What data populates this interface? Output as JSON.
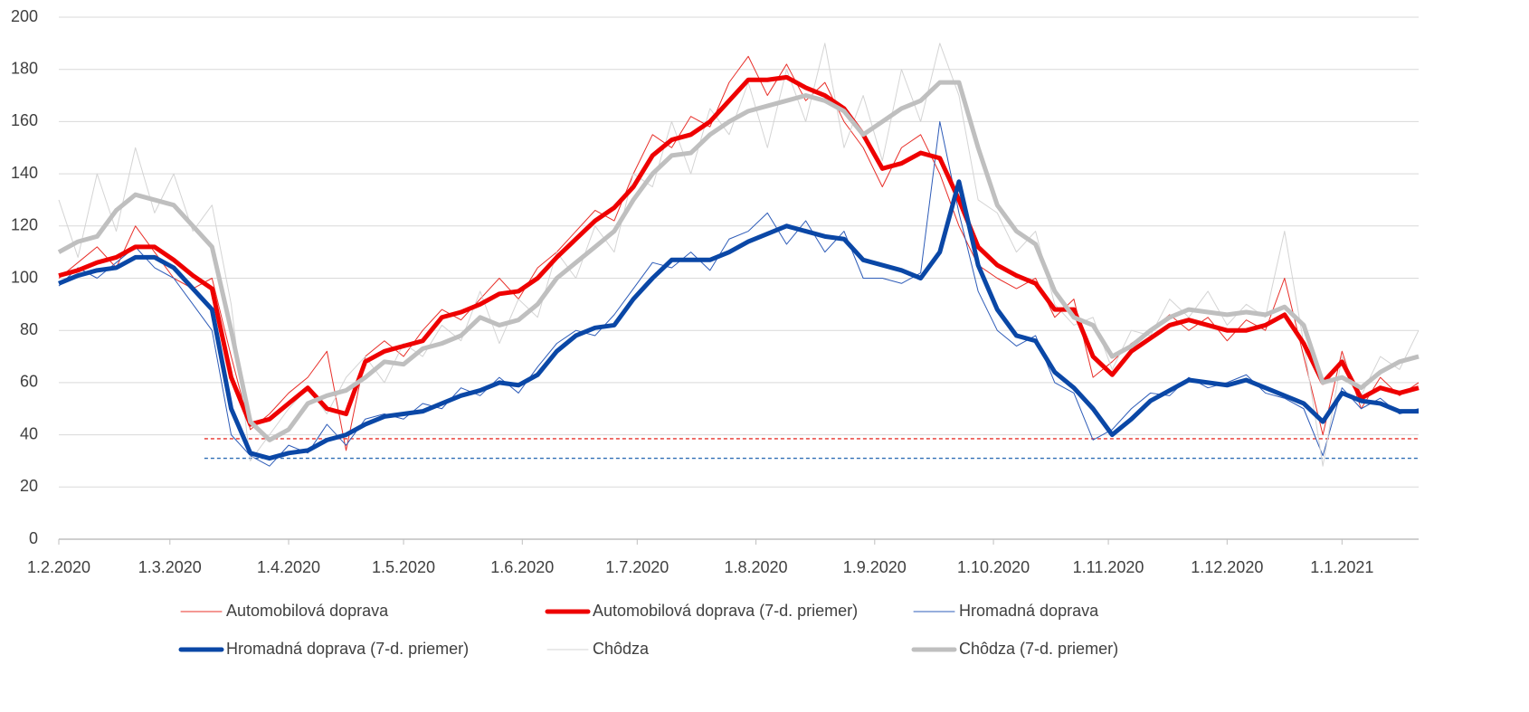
{
  "chart_data": {
    "type": "line",
    "x": [
      0,
      5,
      10,
      15,
      20,
      25,
      30,
      35,
      40,
      45,
      50,
      55,
      60,
      65,
      70,
      75,
      80,
      85,
      90,
      95,
      100,
      105,
      110,
      115,
      120,
      125,
      130,
      135,
      140,
      145,
      150,
      155,
      160,
      165,
      170,
      175,
      180,
      185,
      190,
      195,
      200,
      205,
      210,
      215,
      220,
      225,
      230,
      235,
      240,
      245,
      250,
      255,
      260,
      265,
      270,
      275,
      280,
      285,
      290,
      295,
      300,
      305,
      310,
      315,
      320,
      325,
      330,
      335,
      340,
      345,
      350,
      355
    ],
    "xlim": [
      0,
      355
    ],
    "xticks": [
      {
        "value": 0,
        "label": "1.2.2020"
      },
      {
        "value": 29,
        "label": "1.3.2020"
      },
      {
        "value": 60,
        "label": "1.4.2020"
      },
      {
        "value": 90,
        "label": "1.5.2020"
      },
      {
        "value": 121,
        "label": "1.6.2020"
      },
      {
        "value": 151,
        "label": "1.7.2020"
      },
      {
        "value": 182,
        "label": "1.8.2020"
      },
      {
        "value": 213,
        "label": "1.9.2020"
      },
      {
        "value": 244,
        "label": "1.10.2020"
      },
      {
        "value": 274,
        "label": "1.11.2020"
      },
      {
        "value": 305,
        "label": "1.12.2020"
      },
      {
        "value": 335,
        "label": "1.1.2021"
      }
    ],
    "ylim": [
      0,
      200
    ],
    "yticks": [
      0,
      20,
      40,
      60,
      80,
      100,
      120,
      140,
      160,
      180,
      200
    ],
    "grid": true,
    "reference_lines": [
      {
        "value": 38.5,
        "color": "#e8302a",
        "start": 38
      },
      {
        "value": 31,
        "color": "#2e6db5",
        "start": 38
      }
    ],
    "series": [
      {
        "name": "Automobilová doprava",
        "color": "#e8302a",
        "width": 1,
        "values": [
          100,
          106,
          112,
          104,
          120,
          110,
          100,
          96,
          100,
          70,
          42,
          48,
          56,
          62,
          72,
          34,
          70,
          76,
          70,
          80,
          88,
          84,
          92,
          100,
          92,
          104,
          110,
          118,
          126,
          122,
          140,
          155,
          150,
          162,
          158,
          175,
          185,
          170,
          182,
          168,
          175,
          160,
          150,
          135,
          150,
          155,
          140,
          120,
          105,
          100,
          96,
          100,
          85,
          92,
          62,
          68,
          75,
          80,
          86,
          80,
          85,
          76,
          84,
          80,
          100,
          70,
          40,
          72,
          50,
          62,
          55,
          60
        ]
      },
      {
        "name": "Automobilová doprava (7-d. priemer)",
        "color": "#ee0000",
        "width": 5,
        "values": [
          101,
          103,
          106,
          108,
          112,
          112,
          107,
          101,
          96,
          62,
          44,
          46,
          52,
          58,
          50,
          48,
          68,
          72,
          74,
          76,
          85,
          87,
          90,
          94,
          95,
          100,
          108,
          115,
          122,
          127,
          135,
          147,
          153,
          155,
          160,
          168,
          176,
          176,
          177,
          173,
          170,
          165,
          155,
          142,
          144,
          148,
          146,
          130,
          112,
          105,
          101,
          98,
          88,
          88,
          70,
          63,
          72,
          77,
          82,
          84,
          82,
          80,
          80,
          82,
          86,
          75,
          60,
          68,
          54,
          58,
          56,
          58
        ]
      },
      {
        "name": "Hromadná doprava",
        "color": "#2e5cb8",
        "width": 1,
        "values": [
          97,
          104,
          100,
          106,
          112,
          104,
          100,
          90,
          80,
          40,
          32,
          28,
          36,
          33,
          44,
          36,
          46,
          48,
          46,
          52,
          50,
          58,
          55,
          62,
          56,
          66,
          75,
          80,
          78,
          86,
          96,
          106,
          104,
          110,
          103,
          115,
          118,
          125,
          113,
          122,
          110,
          118,
          100,
          100,
          98,
          102,
          160,
          125,
          95,
          80,
          74,
          78,
          60,
          56,
          38,
          42,
          50,
          56,
          55,
          62,
          58,
          60,
          63,
          56,
          54,
          50,
          32,
          58,
          50,
          54,
          48,
          50
        ]
      },
      {
        "name": "Hromadná doprava (7-d. priemer)",
        "color": "#0a47a6",
        "width": 5,
        "values": [
          98,
          101,
          103,
          104,
          108,
          108,
          104,
          96,
          88,
          50,
          33,
          31,
          33,
          34,
          38,
          40,
          44,
          47,
          48,
          49,
          52,
          55,
          57,
          60,
          59,
          63,
          72,
          78,
          81,
          82,
          92,
          100,
          107,
          107,
          107,
          110,
          114,
          117,
          120,
          118,
          116,
          115,
          107,
          105,
          103,
          100,
          110,
          137,
          105,
          88,
          78,
          76,
          64,
          58,
          50,
          40,
          46,
          53,
          57,
          61,
          60,
          59,
          61,
          58,
          55,
          52,
          45,
          56,
          53,
          52,
          49,
          49
        ]
      },
      {
        "name": "Chôdza",
        "color": "#d4d4d4",
        "width": 1,
        "values": [
          130,
          108,
          140,
          118,
          150,
          125,
          140,
          118,
          128,
          90,
          30,
          40,
          50,
          58,
          48,
          62,
          70,
          60,
          75,
          70,
          82,
          76,
          95,
          75,
          92,
          85,
          110,
          100,
          120,
          110,
          140,
          135,
          160,
          140,
          165,
          155,
          175,
          150,
          180,
          160,
          190,
          150,
          170,
          145,
          180,
          160,
          190,
          170,
          130,
          125,
          110,
          118,
          90,
          82,
          85,
          65,
          80,
          78,
          92,
          85,
          95,
          82,
          90,
          85,
          118,
          75,
          28,
          70,
          55,
          70,
          65,
          80
        ]
      },
      {
        "name": "Chôdza (7-d. priemer)",
        "color": "#bfbfbf",
        "width": 5,
        "values": [
          110,
          114,
          116,
          126,
          132,
          130,
          128,
          120,
          112,
          80,
          45,
          38,
          42,
          52,
          55,
          57,
          62,
          68,
          67,
          73,
          75,
          78,
          85,
          82,
          84,
          90,
          100,
          106,
          112,
          118,
          130,
          140,
          147,
          148,
          155,
          160,
          164,
          166,
          168,
          170,
          168,
          164,
          155,
          160,
          165,
          168,
          175,
          175,
          150,
          128,
          118,
          113,
          95,
          85,
          82,
          70,
          74,
          80,
          85,
          88,
          87,
          86,
          87,
          86,
          89,
          82,
          60,
          62,
          58,
          64,
          68,
          70
        ]
      }
    ]
  }
}
